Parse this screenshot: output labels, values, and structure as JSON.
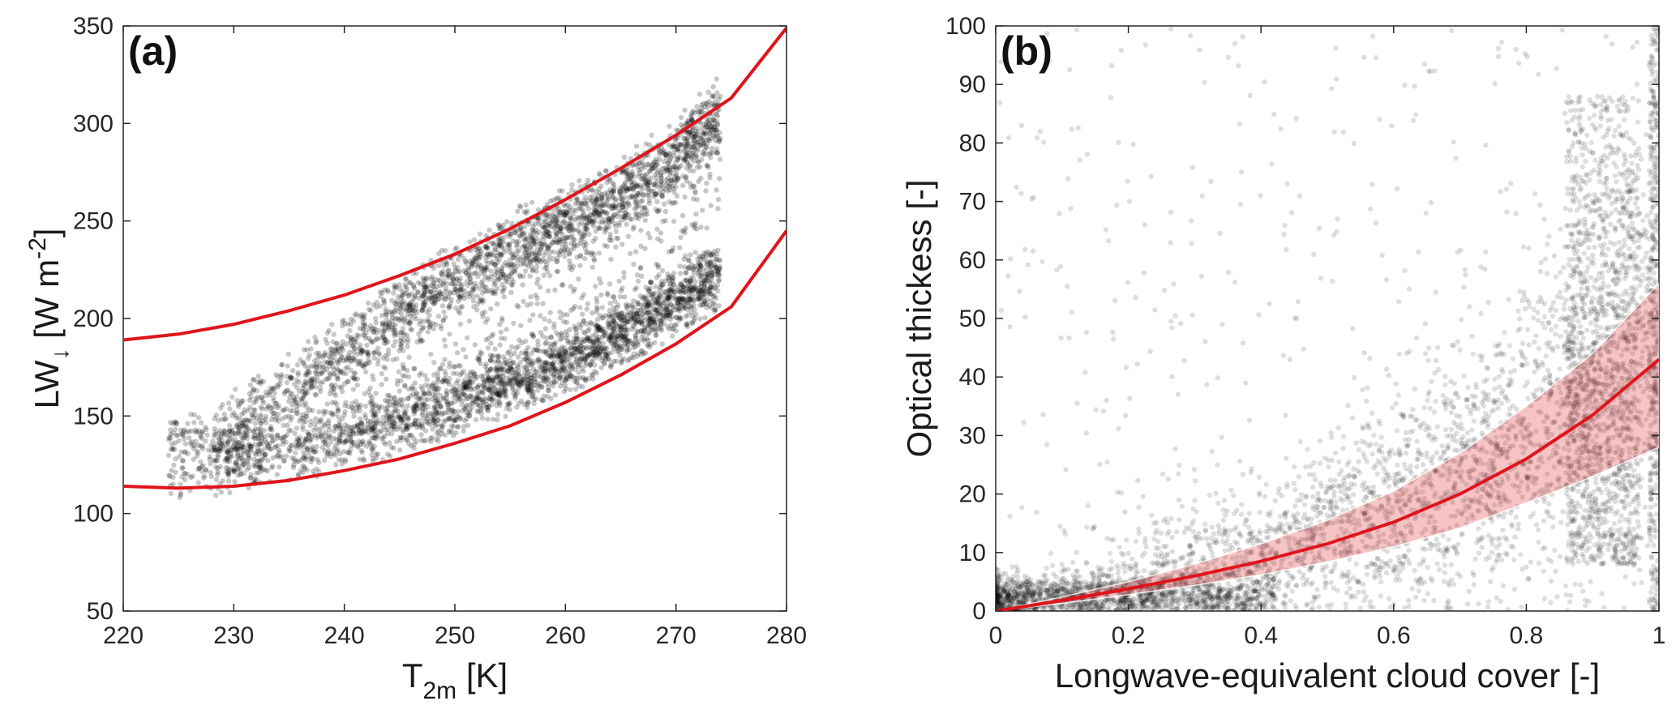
{
  "chart_data": [
    {
      "type": "scatter",
      "panel_label": "(a)",
      "xlabel_main": "T",
      "xlabel_sub": "2m",
      "xlabel_unit": " [K]",
      "ylabel_main": "LW",
      "ylabel_arrow": "↓",
      "ylabel_unit": " [W m",
      "ylabel_exp": "-2",
      "ylabel_close": "]",
      "xlim": [
        220,
        280
      ],
      "ylim": [
        50,
        350
      ],
      "xticks": [
        "220",
        "230",
        "240",
        "250",
        "260",
        "270",
        "280"
      ],
      "yticks": [
        "50",
        "100",
        "150",
        "200",
        "250",
        "300",
        "350"
      ],
      "grid": false,
      "point_color": "#000000",
      "line_color": "#e0141b",
      "scatter_clusters": [
        {
          "x_range": [
            228,
            274
          ],
          "lower": [
            [
              228,
              118
            ],
            [
              235,
              126
            ],
            [
              240,
              132
            ],
            [
              245,
              140
            ],
            [
              250,
              150
            ],
            [
              255,
              160
            ],
            [
              260,
              170
            ],
            [
              265,
              185
            ],
            [
              270,
              200
            ],
            [
              274,
              215
            ]
          ],
          "upper": [
            [
              228,
              150
            ],
            [
              235,
              175
            ],
            [
              240,
              195
            ],
            [
              245,
              215
            ],
            [
              250,
              232
            ],
            [
              255,
              248
            ],
            [
              260,
              260
            ],
            [
              265,
              275
            ],
            [
              270,
              295
            ],
            [
              274,
              318
            ]
          ],
          "density": 1.0
        }
      ],
      "curves": [
        {
          "points": [
            [
              220,
              189
            ],
            [
              225,
              192
            ],
            [
              230,
              197
            ],
            [
              235,
              204
            ],
            [
              240,
              212
            ],
            [
              245,
              222
            ],
            [
              250,
              233
            ],
            [
              255,
              246
            ],
            [
              260,
              261
            ],
            [
              265,
              277
            ],
            [
              270,
              294
            ],
            [
              275,
              313
            ],
            [
              280,
              349
            ]
          ]
        },
        {
          "points": [
            [
              220,
              114
            ],
            [
              225,
              113
            ],
            [
              230,
              114
            ],
            [
              235,
              117
            ],
            [
              240,
              122
            ],
            [
              245,
              128
            ],
            [
              250,
              136
            ],
            [
              255,
              145
            ],
            [
              260,
              157
            ],
            [
              265,
              171
            ],
            [
              270,
              187
            ],
            [
              275,
              206
            ],
            [
              280,
              245
            ]
          ]
        }
      ]
    },
    {
      "type": "scatter",
      "panel_label": "(b)",
      "xlabel": "Longwave-equivalent cloud cover [-]",
      "ylabel": "Optical thickess [-]",
      "xlim": [
        0,
        1
      ],
      "ylim": [
        0,
        100
      ],
      "xticks": [
        "0",
        "0.2",
        "0.4",
        "0.6",
        "0.8",
        "1"
      ],
      "yticks": [
        "0",
        "10",
        "20",
        "30",
        "40",
        "50",
        "60",
        "70",
        "80",
        "90",
        "100"
      ],
      "grid": false,
      "point_color": "#000000",
      "line_color": "#e0141b",
      "band_color": "#e0141b",
      "curve": [
        [
          0,
          0
        ],
        [
          0.1,
          1.8
        ],
        [
          0.2,
          3.8
        ],
        [
          0.3,
          6.0
        ],
        [
          0.4,
          8.5
        ],
        [
          0.5,
          11.5
        ],
        [
          0.6,
          15.2
        ],
        [
          0.7,
          20.0
        ],
        [
          0.8,
          26.0
        ],
        [
          0.9,
          33.5
        ],
        [
          1.0,
          43.0
        ]
      ],
      "band_upper": [
        [
          0,
          0
        ],
        [
          0.1,
          2.4
        ],
        [
          0.2,
          5.0
        ],
        [
          0.3,
          8.0
        ],
        [
          0.4,
          11.5
        ],
        [
          0.5,
          15.5
        ],
        [
          0.6,
          20.5
        ],
        [
          0.7,
          27.0
        ],
        [
          0.8,
          35.0
        ],
        [
          0.9,
          44.0
        ],
        [
          1.0,
          56.0
        ]
      ],
      "band_lower": [
        [
          0,
          0
        ],
        [
          0.1,
          1.3
        ],
        [
          0.2,
          2.8
        ],
        [
          0.3,
          4.4
        ],
        [
          0.4,
          6.2
        ],
        [
          0.5,
          8.4
        ],
        [
          0.6,
          11.0
        ],
        [
          0.7,
          14.2
        ],
        [
          0.8,
          18.5
        ],
        [
          0.9,
          23.0
        ],
        [
          1.0,
          28.0
        ]
      ]
    }
  ]
}
